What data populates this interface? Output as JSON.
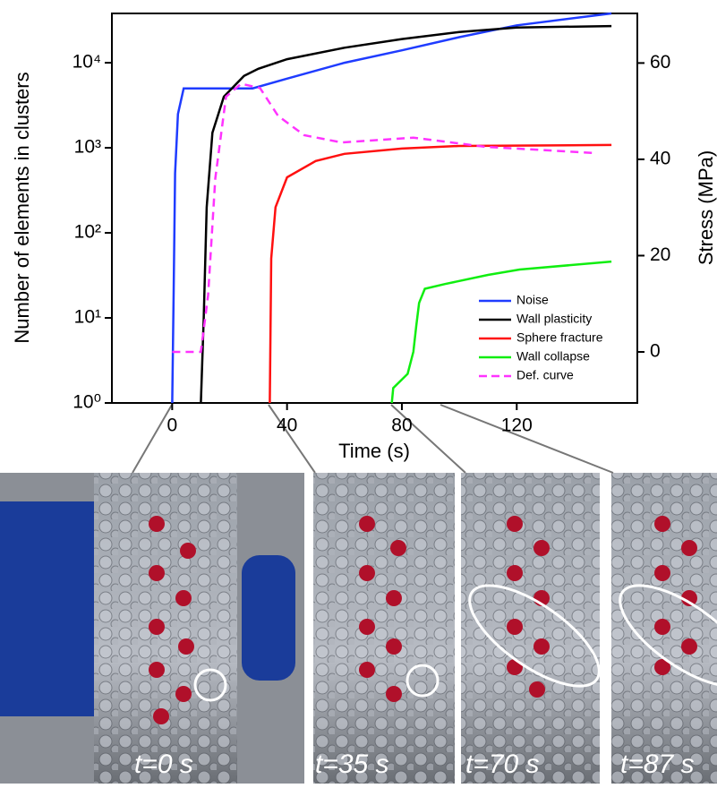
{
  "chart_data": {
    "type": "line",
    "title": null,
    "x_label": "Time (s)",
    "y_label": "Number of elements in clusters",
    "y2_label": "Stress (MPa)",
    "xlim": [
      -21,
      162
    ],
    "xticks": [
      0,
      40,
      80,
      120
    ],
    "ylim": [
      1,
      38000
    ],
    "log_y": true,
    "yticks": [
      {
        "value": 1,
        "label": "10⁰"
      },
      {
        "value": 10,
        "label": "10¹"
      },
      {
        "value": 100,
        "label": "10²"
      },
      {
        "value": 1000,
        "label": "10³"
      },
      {
        "value": 10000,
        "label": "10⁴"
      }
    ],
    "y2lim": [
      -10.6,
      70.3
    ],
    "y2ticks": [
      0,
      20,
      40,
      60
    ],
    "legend": "lower-right",
    "series": [
      {
        "name": "Noise",
        "color": "#1f3cff",
        "x": [
          0,
          0.5,
          1,
          2,
          4,
          28,
          40,
          60,
          80,
          100,
          120,
          153
        ],
        "values": [
          1,
          20,
          500,
          2500,
          5000,
          5000,
          6500,
          10000,
          14000,
          20000,
          27500,
          38000
        ]
      },
      {
        "name": "Wall plasticity",
        "color": "#000000",
        "x": [
          10,
          11,
          12,
          14,
          18,
          25,
          30,
          40,
          60,
          80,
          100,
          120,
          153
        ],
        "values": [
          1,
          10,
          200,
          1500,
          4000,
          7000,
          8500,
          11000,
          15000,
          19000,
          23000,
          26000,
          27000
        ]
      },
      {
        "name": "Sphere fracture",
        "color": "#ff1010",
        "x": [
          34,
          34.5,
          36,
          40,
          50,
          60,
          80,
          100,
          153
        ],
        "values": [
          1,
          50,
          200,
          450,
          700,
          850,
          980,
          1050,
          1080
        ]
      },
      {
        "name": "Wall collapse",
        "color": "#10ee10",
        "x": [
          76.5,
          77,
          82,
          84,
          85,
          86,
          88,
          95,
          110,
          121,
          153
        ],
        "values": [
          1,
          1.5,
          2.2,
          4,
          8,
          15,
          22,
          25,
          32,
          37,
          46
        ]
      },
      {
        "name": "Def. curve",
        "color": "#ff33ff",
        "dashed": true,
        "axis": "y2",
        "x": [
          0,
          10,
          12.5,
          15,
          18.75,
          24,
          30.6,
          36.9,
          46,
          59,
          84,
          109,
          147
        ],
        "values": [
          0,
          0,
          11.8,
          36,
          53,
          55.7,
          54.8,
          49,
          45,
          43.5,
          44.5,
          42.6,
          41.3
        ]
      }
    ]
  },
  "photos": [
    {
      "label": "t=0 s"
    },
    {
      "label": "t=35 s"
    },
    {
      "label": "t=70 s"
    },
    {
      "label": "t=87 s"
    }
  ]
}
